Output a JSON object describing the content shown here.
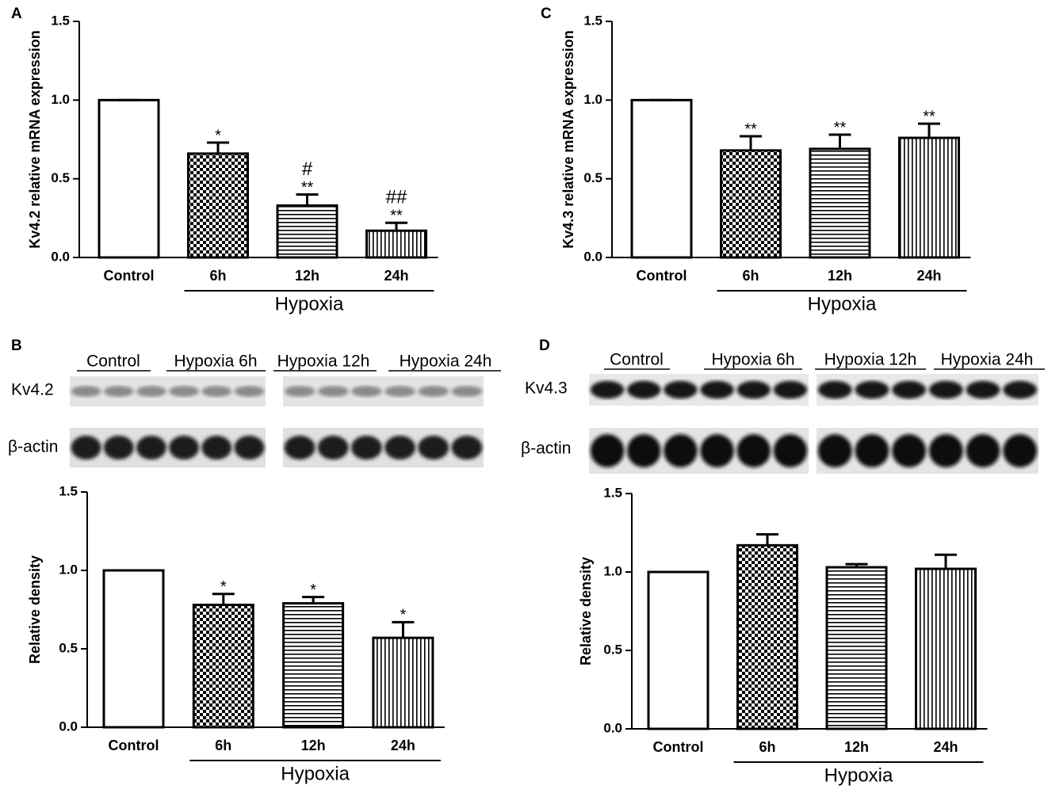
{
  "chart_data": [
    {
      "type": "bar",
      "label": "A",
      "ylabel": "Kv4.2 relative mRNA expression",
      "categories": [
        "Control",
        "6h",
        "12h",
        "24h"
      ],
      "values": [
        1,
        0.66,
        0.33,
        0.17
      ],
      "errors": [
        0,
        0.07,
        0.07,
        0.05
      ],
      "stars": [
        null,
        "*",
        "**",
        "**"
      ],
      "hashes": [
        null,
        null,
        "#",
        "##"
      ],
      "patterns": [
        "none",
        "checker",
        "horizontal",
        "vertical"
      ],
      "group_label": "Hypoxia",
      "ylim": [
        0,
        1.5
      ],
      "yticks": [
        {
          "value": 0,
          "label": "0.0"
        },
        0.5,
        {
          "value": 1,
          "label": "1.0"
        },
        1.5
      ]
    },
    {
      "type": "bar",
      "label": "C",
      "ylabel": "Kv4.3 relative mRNA expression",
      "categories": [
        "Control",
        "6h",
        "12h",
        "24h"
      ],
      "values": [
        1,
        0.68,
        0.69,
        0.76
      ],
      "errors": [
        0,
        0.09,
        0.09,
        0.09
      ],
      "stars": [
        null,
        "**",
        "**",
        "**"
      ],
      "patterns": [
        "none",
        "checker",
        "horizontal",
        "vertical"
      ],
      "group_label": "Hypoxia",
      "ylim": [
        0,
        1.5
      ],
      "yticks": [
        {
          "value": 0,
          "label": "0.0"
        },
        0.5,
        {
          "value": 1,
          "label": "1.0"
        },
        1.5
      ]
    },
    {
      "type": "bar",
      "label": "B",
      "ylabel": "Relative density",
      "categories": [
        "Control",
        "6h",
        "12h",
        "24h"
      ],
      "values": [
        1,
        0.78,
        0.79,
        0.57
      ],
      "errors": [
        0,
        0.07,
        0.04,
        0.1
      ],
      "stars": [
        null,
        "*",
        "*",
        "*"
      ],
      "patterns": [
        "none",
        "checker",
        "horizontal",
        "vertical"
      ],
      "group_label": "Hypoxia",
      "ylim": [
        0,
        1.5
      ],
      "yticks": [
        {
          "value": 0,
          "label": "0.0"
        },
        0.5,
        {
          "value": 1,
          "label": "1.0"
        },
        1.5
      ]
    },
    {
      "type": "bar",
      "label": "D",
      "ylabel": "Relative density",
      "categories": [
        "Control",
        "6h",
        "12h",
        "24h"
      ],
      "values": [
        1,
        1.17,
        1.03,
        1.02
      ],
      "errors": [
        0,
        0.07,
        0.02,
        0.09
      ],
      "patterns": [
        "none",
        "checker",
        "horizontal",
        "vertical"
      ],
      "group_label": "Hypoxia",
      "ylim": [
        0,
        1.5
      ],
      "yticks": [
        {
          "value": 0,
          "label": "0.0"
        },
        0.5,
        {
          "value": 1,
          "label": "1.0"
        },
        1.5
      ]
    }
  ],
  "blots": [
    {
      "lanes": [
        "Control",
        "Hypoxia 6h",
        "Hypoxia 12h",
        "Hypoxia 24h"
      ],
      "rows": [
        "Kv4.2",
        "β-actin"
      ]
    },
    {
      "lanes": [
        "Control",
        "Hypoxia 6h",
        "Hypoxia 12h",
        "Hypoxia 24h"
      ],
      "rows": [
        "Kv4.3",
        "β-actin"
      ]
    }
  ]
}
